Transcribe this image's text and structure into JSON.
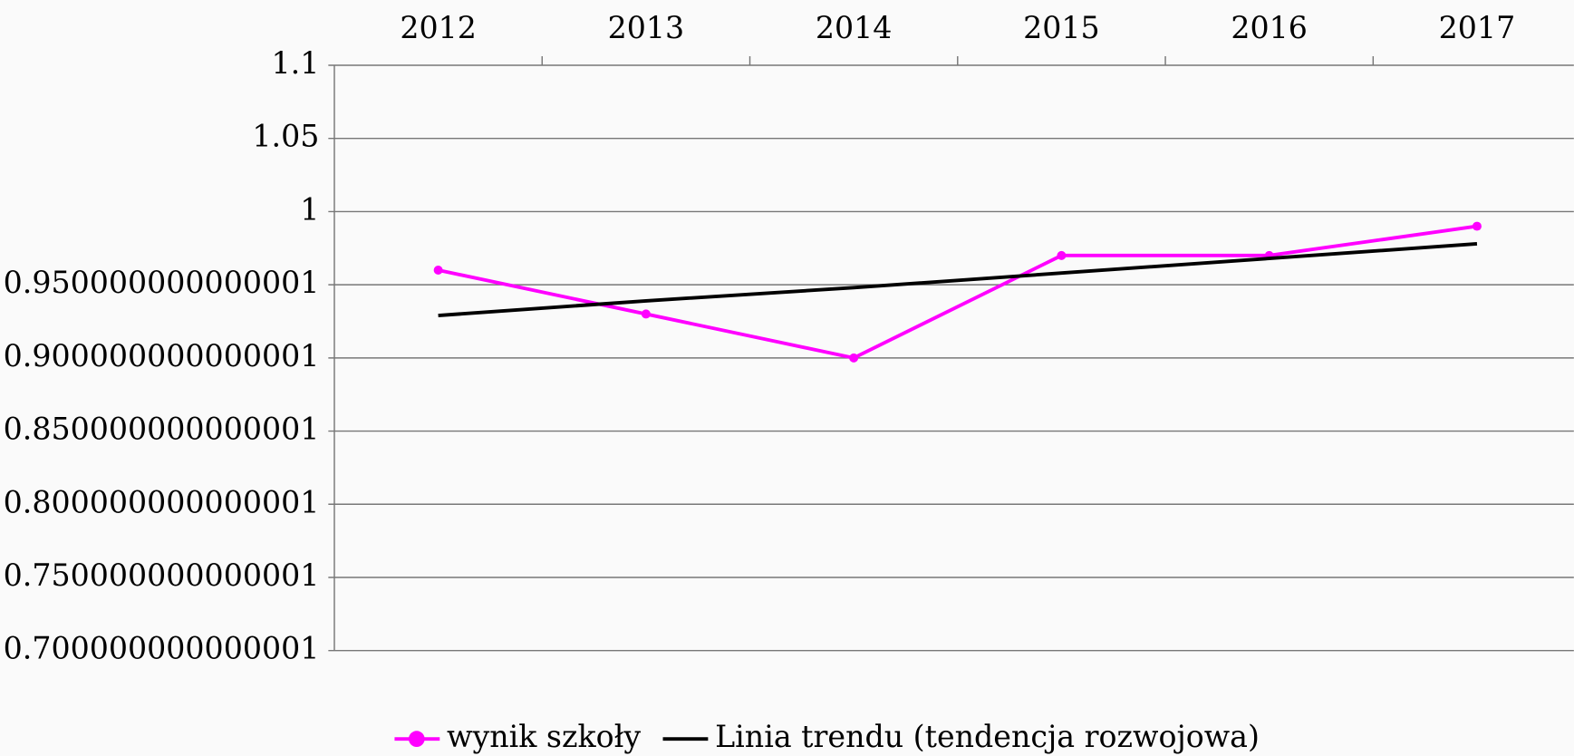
{
  "chart_data": {
    "type": "line",
    "categories": [
      "2012",
      "2013",
      "2014",
      "2015",
      "2016",
      "2017"
    ],
    "series": [
      {
        "name": "wynik szkoły",
        "color": "#ff00ff",
        "marker": true,
        "values": [
          0.96,
          0.93,
          0.9,
          0.97,
          0.97,
          0.99
        ]
      },
      {
        "name": "Linia trendu (tendencja rozwojowa)",
        "color": "#000000",
        "marker": false,
        "values": [
          0.929,
          0.939,
          0.948,
          0.958,
          0.968,
          0.978
        ]
      }
    ],
    "ylim": [
      0.7,
      1.1
    ],
    "yticks": [
      {
        "value": 0.7,
        "label": "0.700000000000001"
      },
      {
        "value": 0.75,
        "label": "0.750000000000001"
      },
      {
        "value": 0.8,
        "label": "0.800000000000001"
      },
      {
        "value": 0.85,
        "label": "0.850000000000001"
      },
      {
        "value": 0.9,
        "label": "0.900000000000001"
      },
      {
        "value": 0.95,
        "label": "0.950000000000001"
      },
      1,
      1.05,
      1.1
    ],
    "grid": true,
    "x_axis_position": "top",
    "legend": "bottom"
  }
}
